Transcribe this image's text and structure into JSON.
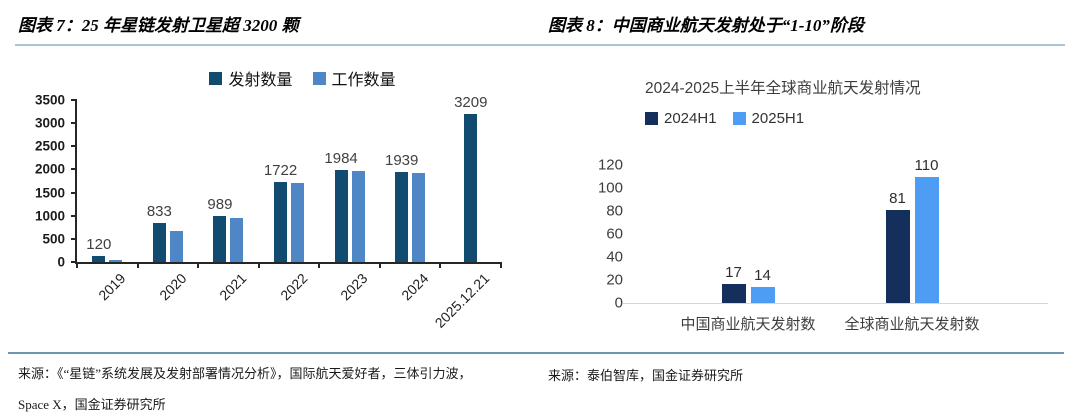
{
  "left_panel": {
    "header": "图表 7：25 年星链发射卫星超 3200 颗",
    "source_line1": "来源：《“星链”系统发展及发射部署情况分析》，国际航天爱好者，三体引力波，",
    "source_line2": "Space X，国金证券研究所"
  },
  "right_panel": {
    "header": "图表 8：中国商业航天发射处于“1-10”阶段",
    "source": "来源：泰伯智库，国金证券研究所"
  },
  "theme": {
    "rule_color": "#A9C2D4",
    "divider_color": "#6B97B4",
    "axis_color": "#262626",
    "baseline_color": "#D6D6D6"
  },
  "chart_data": [
    {
      "type": "bar",
      "title": "",
      "categories": [
        "2019",
        "2020",
        "2021",
        "2022",
        "2023",
        "2024",
        "2025.12.21"
      ],
      "series": [
        {
          "name": "发射数量",
          "color": "#114C70",
          "values": [
            120,
            833,
            989,
            1722,
            1984,
            1939,
            3209
          ]
        },
        {
          "name": "工作数量",
          "color": "#4E86C6",
          "values": [
            50,
            680,
            950,
            1700,
            1975,
            1930,
            null
          ]
        }
      ],
      "data_labels_series": "发射数量",
      "data_labels": [
        120,
        833,
        989,
        1722,
        1984,
        1939,
        3209
      ],
      "xlabel": "",
      "ylabel": "",
      "ylim": [
        0,
        3500
      ],
      "yticks": [
        0,
        500,
        1000,
        1500,
        2000,
        2500,
        3000,
        3500
      ],
      "grid": false,
      "legend_position": "top-center",
      "x_tick_label_rotation_deg": -45
    },
    {
      "type": "bar",
      "title": "2024-2025上半年全球商业航天发射情况",
      "categories": [
        "中国商业航天发射数",
        "全球商业航天发射数"
      ],
      "series": [
        {
          "name": "2024H1",
          "color": "#142F5C",
          "values": [
            17,
            81
          ]
        },
        {
          "name": "2025H1",
          "color": "#4D9DF5",
          "values": [
            14,
            110
          ]
        }
      ],
      "data_labels": true,
      "xlabel": "",
      "ylabel": "",
      "ylim": [
        0,
        120
      ],
      "yticks": [
        0,
        20,
        40,
        60,
        80,
        100,
        120
      ],
      "grid": false,
      "legend_position": "top-left"
    }
  ]
}
